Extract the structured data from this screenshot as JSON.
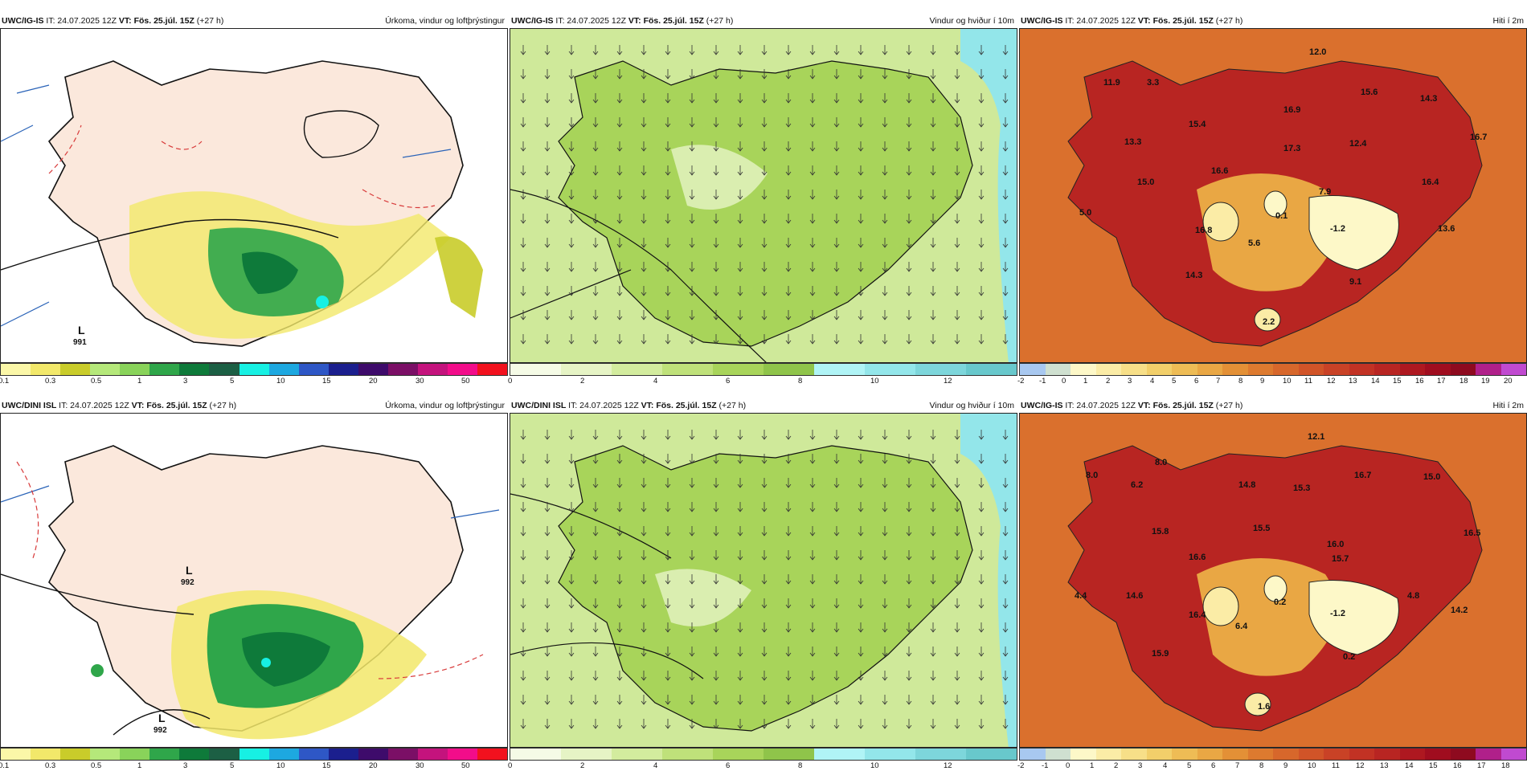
{
  "rows": [
    {
      "model": "UWC/IG-IS",
      "precip": {
        "it": "IT: 24.07.2025 12Z",
        "vt": "VT: Fös. 25.júl. 15Z",
        "lead": "(+27 h)",
        "title": "Úrkoma, vindur og loftþrýstingur",
        "low_label": "L",
        "low_value": "991"
      },
      "wind": {
        "it": "IT: 24.07.2025 12Z",
        "vt": "VT: Fös. 25.júl. 15Z",
        "lead": "(+27 h)",
        "title": "Vindur og hviður í 10m"
      },
      "temp": {
        "it": "IT: 24.07.2025 12Z",
        "vt": "VT: Fös. 25.júl. 15Z",
        "lead": "(+27 h)",
        "title": "Hiti í 2m",
        "values": [
          "12.0",
          "11.9",
          "3.3",
          "15.6",
          "14.3",
          "15.4",
          "16.9",
          "16.7",
          "13.3",
          "17.3",
          "12.4",
          "16.6",
          "15.0",
          "7.9",
          "16.4",
          "5.0",
          "0.1",
          "-1.2",
          "13.6",
          "16.8",
          "5.6",
          "14.3",
          "9.1",
          "2.2"
        ]
      }
    },
    {
      "model": "UWC/DINI ISL",
      "precip": {
        "it": "IT: 24.07.2025 12Z",
        "vt": "VT: Fös. 25.júl. 15Z",
        "lead": "(+27 h)",
        "title": "Úrkoma, vindur og loftþrýstingur",
        "low_label": "L",
        "low_value": "992",
        "low2_label": "L",
        "low2_value": "992"
      },
      "wind": {
        "it": "IT: 24.07.2025 12Z",
        "vt": "VT: Fös. 25.júl. 15Z",
        "lead": "(+27 h)",
        "title": "Vindur og hviður í 10m"
      },
      "temp": {
        "it": "IT: 24.07.2025 12Z",
        "vt": "VT: Fös. 25.júl. 15Z",
        "lead": "(+27 h)",
        "title": "Hiti í 2m",
        "values": [
          "12.1",
          "8.0",
          "8.0",
          "6.2",
          "14.8",
          "15.3",
          "16.7",
          "15.0",
          "15.8",
          "15.5",
          "16.0",
          "16.5",
          "16.6",
          "15.7",
          "4.4",
          "14.6",
          "0.2",
          "4.8",
          "16.4",
          "6.4",
          "-1.2",
          "14.2",
          "15.9",
          "0.2",
          "1.6"
        ]
      }
    }
  ],
  "scales": {
    "precip": {
      "colors": [
        "#fbf7a8",
        "#f2e86a",
        "#c9cc2a",
        "#b5e87a",
        "#89d35a",
        "#2fa64a",
        "#0e7a3a",
        "#1c5f44",
        "#17f0e3",
        "#1da8e0",
        "#2e57c6",
        "#1b1f8e",
        "#3e0b6b",
        "#7b0f66",
        "#c4137d",
        "#f20d8a",
        "#f2111e"
      ],
      "ticks": [
        "0.1",
        "0.3",
        "0.5",
        "1",
        "3",
        "5",
        "10",
        "15",
        "20",
        "30",
        "50"
      ]
    },
    "wind": {
      "colors": [
        "#f5fbe6",
        "#e6f4c5",
        "#d3ec9e",
        "#bfe17a",
        "#a8d45a",
        "#8fc44a",
        "#b0f4f6",
        "#93e6ea",
        "#7dd6db",
        "#68c8cc"
      ],
      "ticks": [
        "0",
        "2",
        "4",
        "6",
        "8",
        "10",
        "12"
      ]
    },
    "temp": {
      "colors": [
        "#a8c8f0",
        "#cfe0d0",
        "#fdf8c8",
        "#fbeca6",
        "#f7df88",
        "#f2cf6a",
        "#eebc55",
        "#e9a744",
        "#e39036",
        "#dd7a2f",
        "#d7672b",
        "#d15428",
        "#c94226",
        "#c23224",
        "#b82522",
        "#ae1820",
        "#a00d1f",
        "#8e0a1f",
        "#b0208a",
        "#c04ad0"
      ],
      "ticks": [
        "-2",
        "-1",
        "0",
        "1",
        "2",
        "3",
        "4",
        "5",
        "6",
        "7",
        "8",
        "9",
        "10",
        "11",
        "12",
        "13",
        "14",
        "15",
        "16",
        "17",
        "18",
        "19",
        "20"
      ],
      "ticks_b": [
        "-2",
        "-1",
        "0",
        "1",
        "2",
        "3",
        "4",
        "5",
        "6",
        "7",
        "8",
        "9",
        "10",
        "11",
        "12",
        "13",
        "14",
        "15",
        "16",
        "17",
        "18"
      ]
    }
  }
}
